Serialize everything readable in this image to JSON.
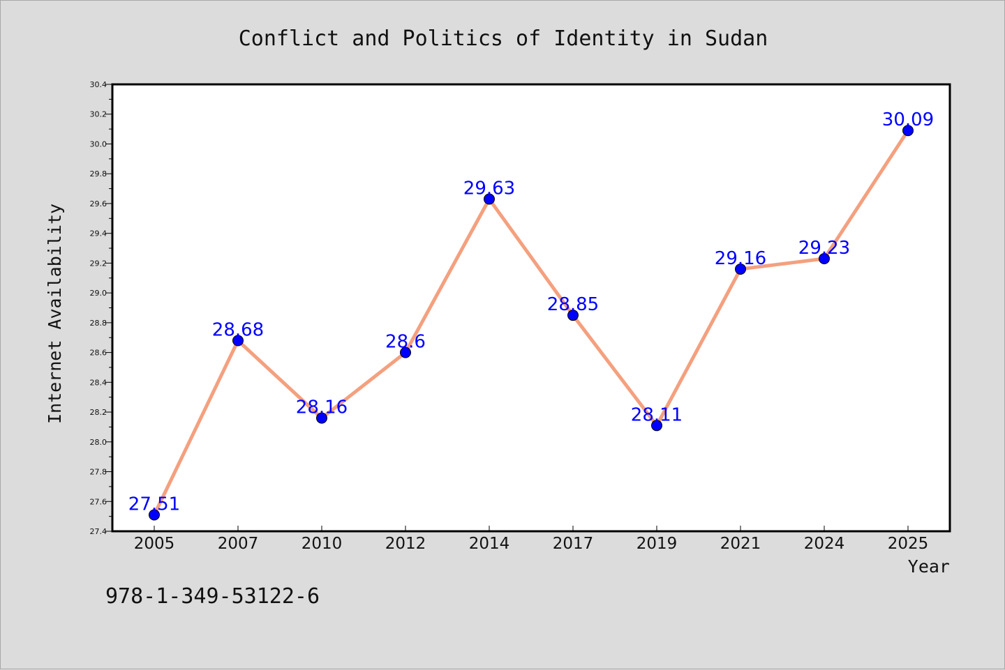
{
  "chart_data": {
    "type": "line",
    "title": "Conflict and Politics of Identity in Sudan",
    "xlabel": "Year",
    "ylabel": "Internet Availability",
    "categories": [
      "2005",
      "2007",
      "2010",
      "2012",
      "2014",
      "2017",
      "2019",
      "2021",
      "2024",
      "2025"
    ],
    "series": [
      {
        "values": [
          27.51,
          28.68,
          28.16,
          28.6,
          29.63,
          28.85,
          28.11,
          29.16,
          29.23,
          30.09
        ],
        "labels": [
          "27.51",
          "28.68",
          "28.16",
          "28.6",
          "29.63",
          "28.85",
          "28.11",
          "29.16",
          "29.23",
          "30.09"
        ]
      }
    ],
    "ylim": [
      27.4,
      30.4
    ],
    "yticks": [
      "27.4",
      "27.6",
      "27.8",
      "28.0",
      "28.2",
      "28.4",
      "28.6",
      "28.8",
      "29.0",
      "29.2",
      "29.4",
      "29.6",
      "29.8",
      "30.0",
      "30.2",
      "30.4"
    ],
    "grid": false,
    "legend": "none",
    "line_color": "#f4a07f",
    "marker_color": "#0000ff",
    "label_color": "#0000ff",
    "plot_background": "#ffffff",
    "figure_background": "#dcdcdc"
  },
  "footer": {
    "isbn": "978-1-349-53122-6"
  }
}
